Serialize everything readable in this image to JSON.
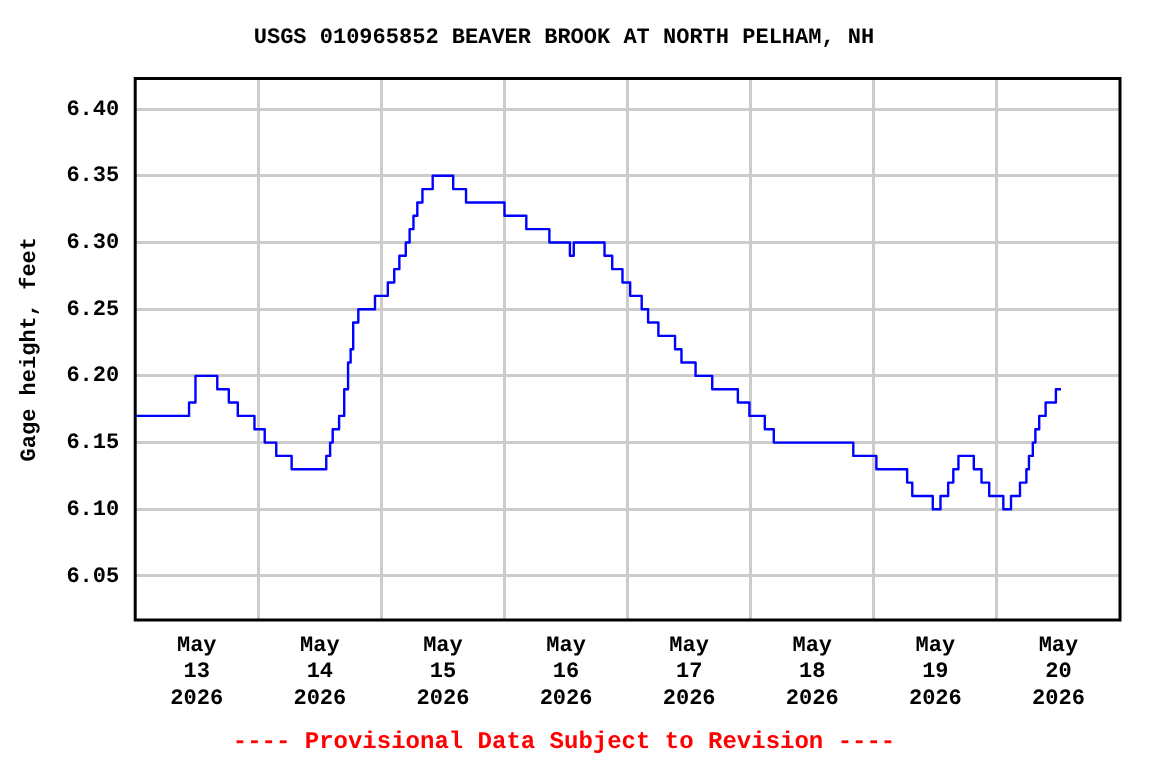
{
  "chart_data": {
    "type": "step",
    "title": "USGS 010965852 BEAVER BROOK AT NORTH PELHAM, NH",
    "ylabel": "Gage height, feet",
    "annotations": [
      "---- Provisional Data Subject to Revision ----"
    ],
    "x": [
      "2026-05-13T00:00",
      "2026-05-13T10:30",
      "2026-05-13T11:45",
      "2026-05-13T16:00",
      "2026-05-13T18:15",
      "2026-05-13T20:00",
      "2026-05-13T23:15",
      "2026-05-14T01:15",
      "2026-05-14T03:30",
      "2026-05-14T06:30",
      "2026-05-14T13:15",
      "2026-05-14T14:00",
      "2026-05-14T14:30",
      "2026-05-14T15:45",
      "2026-05-14T16:45",
      "2026-05-14T17:30",
      "2026-05-14T18:00",
      "2026-05-14T18:30",
      "2026-05-14T19:30",
      "2026-05-14T22:45",
      "2026-05-15T01:15",
      "2026-05-15T02:30",
      "2026-05-15T03:30",
      "2026-05-15T04:45",
      "2026-05-15T05:30",
      "2026-05-15T06:15",
      "2026-05-15T07:00",
      "2026-05-15T08:00",
      "2026-05-15T10:00",
      "2026-05-15T14:00",
      "2026-05-15T16:30",
      "2026-05-16T00:00",
      "2026-05-16T04:15",
      "2026-05-16T08:45",
      "2026-05-16T12:45",
      "2026-05-16T13:30",
      "2026-05-16T19:30",
      "2026-05-16T21:00",
      "2026-05-16T23:00",
      "2026-05-17T00:30",
      "2026-05-17T02:45",
      "2026-05-17T04:00",
      "2026-05-17T06:00",
      "2026-05-17T09:15",
      "2026-05-17T10:30",
      "2026-05-17T13:15",
      "2026-05-17T16:30",
      "2026-05-17T21:30",
      "2026-05-17T23:45",
      "2026-05-18T02:45",
      "2026-05-18T04:30",
      "2026-05-18T20:00",
      "2026-05-19T00:30",
      "2026-05-19T06:30",
      "2026-05-19T07:30",
      "2026-05-19T11:30",
      "2026-05-19T13:00",
      "2026-05-19T14:30",
      "2026-05-19T15:30",
      "2026-05-19T16:30",
      "2026-05-19T19:30",
      "2026-05-19T21:00",
      "2026-05-19T22:30",
      "2026-05-20T01:15",
      "2026-05-20T02:45",
      "2026-05-20T04:30",
      "2026-05-20T05:45",
      "2026-05-20T06:15",
      "2026-05-20T07:00",
      "2026-05-20T07:30",
      "2026-05-20T08:15",
      "2026-05-20T09:30",
      "2026-05-20T11:30",
      "2026-05-20T12:30"
    ],
    "series": [
      {
        "color": "#0000ff",
        "values": [
          6.17,
          6.18,
          6.2,
          6.19,
          6.18,
          6.17,
          6.16,
          6.15,
          6.14,
          6.13,
          6.14,
          6.15,
          6.16,
          6.17,
          6.19,
          6.21,
          6.22,
          6.24,
          6.25,
          6.26,
          6.27,
          6.28,
          6.29,
          6.3,
          6.31,
          6.32,
          6.33,
          6.34,
          6.35,
          6.34,
          6.33,
          6.32,
          6.31,
          6.3,
          6.29,
          6.3,
          6.29,
          6.28,
          6.27,
          6.26,
          6.25,
          6.24,
          6.23,
          6.22,
          6.21,
          6.2,
          6.19,
          6.18,
          6.17,
          6.16,
          6.15,
          6.14,
          6.13,
          6.12,
          6.11,
          6.1,
          6.11,
          6.12,
          6.13,
          6.14,
          6.13,
          6.12,
          6.11,
          6.1,
          6.11,
          6.12,
          6.13,
          6.14,
          6.15,
          6.16,
          6.17,
          6.18,
          6.19,
          6.19
        ]
      }
    ],
    "xlim": [
      "2026-05-13T00:00",
      "2026-05-21T00:00"
    ],
    "xticks": [
      {
        "value": "2026-05-13T12:00",
        "label": "May\n13\n2026"
      },
      {
        "value": "2026-05-14T00:00",
        "label": null
      },
      {
        "value": "2026-05-14T12:00",
        "label": "May\n14\n2026"
      },
      {
        "value": "2026-05-15T00:00",
        "label": null
      },
      {
        "value": "2026-05-15T12:00",
        "label": "May\n15\n2026"
      },
      {
        "value": "2026-05-16T00:00",
        "label": null
      },
      {
        "value": "2026-05-16T12:00",
        "label": "May\n16\n2026"
      },
      {
        "value": "2026-05-17T00:00",
        "label": null
      },
      {
        "value": "2026-05-17T12:00",
        "label": "May\n17\n2026"
      },
      {
        "value": "2026-05-18T00:00",
        "label": null
      },
      {
        "value": "2026-05-18T12:00",
        "label": "May\n18\n2026"
      },
      {
        "value": "2026-05-19T00:00",
        "label": null
      },
      {
        "value": "2026-05-19T12:00",
        "label": "May\n19\n2026"
      },
      {
        "value": "2026-05-20T00:00",
        "label": null
      },
      {
        "value": "2026-05-20T12:00",
        "label": "May\n20\n2026"
      }
    ],
    "ylim": [
      6.017,
      6.423
    ],
    "yticks": [
      {
        "value": 6.05,
        "label": "6.05"
      },
      {
        "value": 6.1,
        "label": "6.10"
      },
      {
        "value": 6.15,
        "label": "6.15"
      },
      {
        "value": 6.2,
        "label": "6.20"
      },
      {
        "value": 6.25,
        "label": "6.25"
      },
      {
        "value": 6.3,
        "label": "6.30"
      },
      {
        "value": 6.35,
        "label": "6.35"
      },
      {
        "value": 6.4,
        "label": "6.40"
      }
    ],
    "grid": true,
    "legend": false,
    "marker": "none",
    "line_style": "solid"
  }
}
